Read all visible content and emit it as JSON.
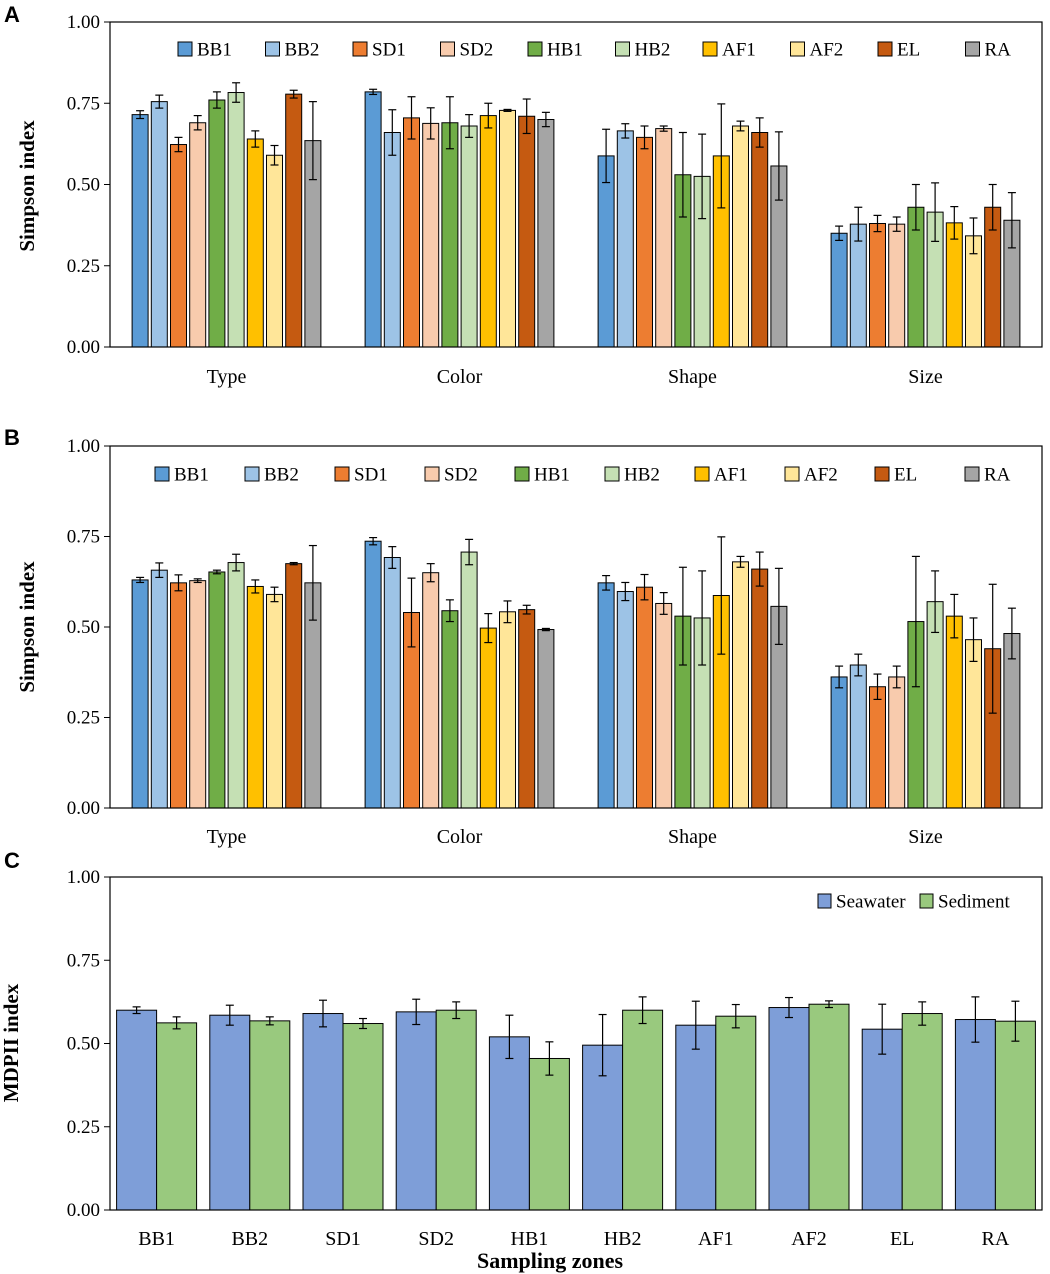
{
  "chart_data": [
    {
      "type": "bar",
      "panel_label": "A",
      "title": "",
      "xlabel": "",
      "ylabel": "Simpson index",
      "ylim": [
        0,
        1
      ],
      "yticks": [
        "0.00",
        "0.25",
        "0.50",
        "0.75",
        "1.00"
      ],
      "legend_position": "top",
      "categories": [
        "Type",
        "Color",
        "Shape",
        "Size"
      ],
      "series": [
        {
          "name": "BB1",
          "color": "#5B9BD5",
          "values": [
            0.715,
            0.785,
            0.588,
            0.35
          ],
          "errors": [
            0.012,
            0.008,
            0.082,
            0.022
          ]
        },
        {
          "name": "BB2",
          "color": "#9DC3E6",
          "values": [
            0.755,
            0.66,
            0.665,
            0.378
          ],
          "errors": [
            0.02,
            0.07,
            0.022,
            0.052
          ]
        },
        {
          "name": "SD1",
          "color": "#ED7D31",
          "values": [
            0.623,
            0.705,
            0.645,
            0.38
          ],
          "errors": [
            0.022,
            0.065,
            0.035,
            0.025
          ]
        },
        {
          "name": "SD2",
          "color": "#F8CBAD",
          "values": [
            0.69,
            0.688,
            0.672,
            0.378
          ],
          "errors": [
            0.022,
            0.048,
            0.008,
            0.022
          ]
        },
        {
          "name": "HB1",
          "color": "#70AD47",
          "values": [
            0.76,
            0.69,
            0.53,
            0.43
          ],
          "errors": [
            0.025,
            0.08,
            0.13,
            0.07
          ]
        },
        {
          "name": "HB2",
          "color": "#C5E0B4",
          "values": [
            0.783,
            0.68,
            0.525,
            0.415
          ],
          "errors": [
            0.03,
            0.035,
            0.13,
            0.09
          ]
        },
        {
          "name": "AF1",
          "color": "#FFC000",
          "values": [
            0.64,
            0.712,
            0.588,
            0.382
          ],
          "errors": [
            0.025,
            0.038,
            0.16,
            0.05
          ]
        },
        {
          "name": "AF2",
          "color": "#FFE699",
          "values": [
            0.59,
            0.728,
            0.68,
            0.342
          ],
          "errors": [
            0.03,
            0.003,
            0.015,
            0.055
          ]
        },
        {
          "name": "EL",
          "color": "#C55A11",
          "values": [
            0.778,
            0.71,
            0.66,
            0.43
          ],
          "errors": [
            0.012,
            0.053,
            0.045,
            0.07
          ]
        },
        {
          "name": "RA",
          "color": "#A5A5A5",
          "values": [
            0.635,
            0.7,
            0.557,
            0.39
          ],
          "errors": [
            0.12,
            0.022,
            0.105,
            0.085
          ]
        }
      ]
    },
    {
      "type": "bar",
      "panel_label": "B",
      "title": "",
      "xlabel": "",
      "ylabel": "Simpson index",
      "ylim": [
        0,
        1
      ],
      "yticks": [
        "0.00",
        "0.25",
        "0.50",
        "0.75",
        "1.00"
      ],
      "legend_position": "top",
      "categories": [
        "Type",
        "Color",
        "Shape",
        "Size"
      ],
      "series": [
        {
          "name": "BB1",
          "color": "#5B9BD5",
          "values": [
            0.63,
            0.737,
            0.622,
            0.362
          ],
          "errors": [
            0.007,
            0.01,
            0.02,
            0.03
          ]
        },
        {
          "name": "BB2",
          "color": "#9DC3E6",
          "values": [
            0.657,
            0.692,
            0.598,
            0.395
          ],
          "errors": [
            0.02,
            0.03,
            0.025,
            0.03
          ]
        },
        {
          "name": "SD1",
          "color": "#ED7D31",
          "values": [
            0.622,
            0.54,
            0.61,
            0.335
          ],
          "errors": [
            0.022,
            0.095,
            0.035,
            0.035
          ]
        },
        {
          "name": "SD2",
          "color": "#F8CBAD",
          "values": [
            0.628,
            0.65,
            0.565,
            0.362
          ],
          "errors": [
            0.005,
            0.025,
            0.03,
            0.03
          ]
        },
        {
          "name": "HB1",
          "color": "#70AD47",
          "values": [
            0.652,
            0.545,
            0.53,
            0.515
          ],
          "errors": [
            0.005,
            0.03,
            0.135,
            0.18
          ]
        },
        {
          "name": "HB2",
          "color": "#C5E0B4",
          "values": [
            0.678,
            0.707,
            0.525,
            0.57
          ],
          "errors": [
            0.023,
            0.035,
            0.13,
            0.085
          ]
        },
        {
          "name": "AF1",
          "color": "#FFC000",
          "values": [
            0.612,
            0.497,
            0.587,
            0.53
          ],
          "errors": [
            0.018,
            0.04,
            0.162,
            0.06
          ]
        },
        {
          "name": "AF2",
          "color": "#FFE699",
          "values": [
            0.59,
            0.542,
            0.68,
            0.465
          ],
          "errors": [
            0.02,
            0.03,
            0.015,
            0.06
          ]
        },
        {
          "name": "EL",
          "color": "#C55A11",
          "values": [
            0.675,
            0.548,
            0.66,
            0.44
          ],
          "errors": [
            0.003,
            0.012,
            0.047,
            0.178
          ]
        },
        {
          "name": "RA",
          "color": "#A5A5A5",
          "values": [
            0.622,
            0.493,
            0.557,
            0.482
          ],
          "errors": [
            0.103,
            0.003,
            0.105,
            0.07
          ]
        }
      ]
    },
    {
      "type": "bar",
      "panel_label": "C",
      "title": "",
      "xlabel": "Sampling zones",
      "ylabel": "MDPII index",
      "ylim": [
        0,
        1
      ],
      "yticks": [
        "0.00",
        "0.25",
        "0.50",
        "0.75",
        "1.00"
      ],
      "legend_position": "top-right",
      "categories": [
        "BB1",
        "BB2",
        "SD1",
        "SD2",
        "HB1",
        "HB2",
        "AF1",
        "AF2",
        "EL",
        "RA"
      ],
      "series": [
        {
          "name": "Seawater",
          "color": "#7E9ED8",
          "values": [
            0.6,
            0.585,
            0.59,
            0.595,
            0.52,
            0.495,
            0.555,
            0.608,
            0.543,
            0.572
          ],
          "errors": [
            0.01,
            0.03,
            0.04,
            0.038,
            0.065,
            0.092,
            0.072,
            0.03,
            0.075,
            0.068
          ]
        },
        {
          "name": "Sediment",
          "color": "#99C97E",
          "values": [
            0.562,
            0.568,
            0.56,
            0.6,
            0.455,
            0.6,
            0.582,
            0.618,
            0.59,
            0.567
          ],
          "errors": [
            0.018,
            0.012,
            0.015,
            0.025,
            0.05,
            0.04,
            0.035,
            0.01,
            0.035,
            0.06
          ]
        }
      ]
    }
  ]
}
